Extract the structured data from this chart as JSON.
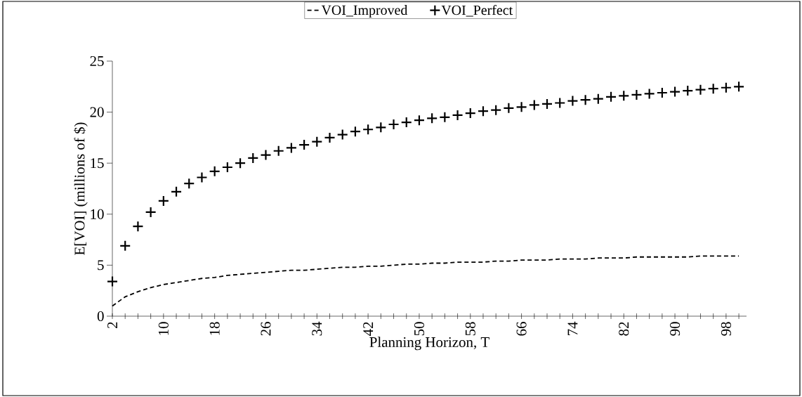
{
  "chart_data": {
    "type": "line",
    "xlabel": "Planning Horizon, T",
    "ylabel": "E[VOI] (millions of $)",
    "categories": [
      "2",
      null,
      null,
      null,
      "10",
      null,
      null,
      null,
      "18",
      null,
      null,
      null,
      "26",
      null,
      null,
      null,
      "34",
      null,
      null,
      null,
      "42",
      null,
      null,
      null,
      "50",
      null,
      null,
      null,
      "58",
      null,
      null,
      null,
      "66",
      null,
      null,
      null,
      "74",
      null,
      null,
      null,
      "82",
      null,
      null,
      null,
      "90",
      null,
      null,
      null,
      "98",
      null
    ],
    "series": [
      {
        "name": "VOI_Improved",
        "color": "#000000",
        "line_style": "dashed",
        "marker": "none",
        "values": [
          1.0,
          1.9,
          2.4,
          2.8,
          3.1,
          3.3,
          3.5,
          3.7,
          3.8,
          4.0,
          4.1,
          4.2,
          4.3,
          4.4,
          4.5,
          4.5,
          4.6,
          4.7,
          4.8,
          4.8,
          4.9,
          4.9,
          5.0,
          5.1,
          5.1,
          5.2,
          5.2,
          5.3,
          5.3,
          5.3,
          5.4,
          5.4,
          5.5,
          5.5,
          5.5,
          5.6,
          5.6,
          5.6,
          5.7,
          5.7,
          5.7,
          5.8,
          5.8,
          5.8,
          5.8,
          5.8,
          5.9,
          5.9,
          5.9,
          5.9
        ]
      },
      {
        "name": "VOI_Perfect",
        "type": "scatter",
        "color": "#000000",
        "marker": "cross",
        "values": [
          3.4,
          6.9,
          8.8,
          10.2,
          11.3,
          12.2,
          13.0,
          13.6,
          14.2,
          14.6,
          15.0,
          15.5,
          15.8,
          16.2,
          16.5,
          16.8,
          17.1,
          17.5,
          17.8,
          18.1,
          18.3,
          18.5,
          18.8,
          19.0,
          19.2,
          19.4,
          19.5,
          19.7,
          19.9,
          20.1,
          20.2,
          20.4,
          20.5,
          20.7,
          20.8,
          20.9,
          21.1,
          21.2,
          21.3,
          21.5,
          21.6,
          21.7,
          21.8,
          21.9,
          22.0,
          22.1,
          22.2,
          22.3,
          22.4,
          22.5
        ]
      }
    ],
    "ylim": [
      0,
      25
    ],
    "yticks": [
      0,
      5,
      10,
      15,
      20,
      25
    ],
    "grid": false,
    "legend": "top"
  }
}
